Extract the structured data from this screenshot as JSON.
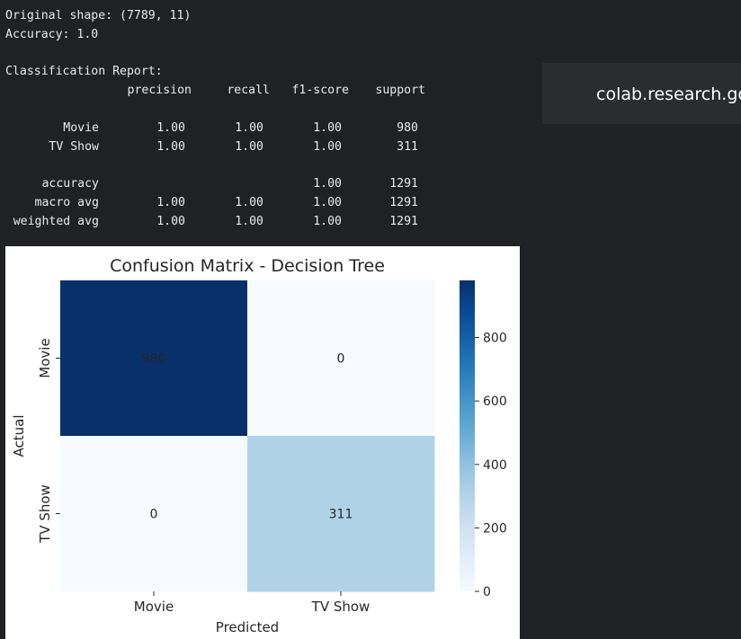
{
  "output": {
    "shape_line": "Original shape: (7789, 11)",
    "accuracy_line": "Accuracy: 1.0",
    "report_title": "Classification Report:",
    "columns": [
      "precision",
      "recall",
      "f1-score",
      "support"
    ],
    "rows": [
      {
        "label": "Movie",
        "precision": "1.00",
        "recall": "1.00",
        "f1": "1.00",
        "support": "980"
      },
      {
        "label": "TV Show",
        "precision": "1.00",
        "recall": "1.00",
        "f1": "1.00",
        "support": "311"
      },
      {
        "label": "accuracy",
        "precision": "",
        "recall": "",
        "f1": "1.00",
        "support": "1291"
      },
      {
        "label": "macro avg",
        "precision": "1.00",
        "recall": "1.00",
        "f1": "1.00",
        "support": "1291"
      },
      {
        "label": "weighted avg",
        "precision": "1.00",
        "recall": "1.00",
        "f1": "1.00",
        "support": "1291"
      }
    ]
  },
  "toast": {
    "text": "colab.research.google.com"
  },
  "chart_data": {
    "type": "heatmap",
    "title": "Confusion Matrix - Decision Tree",
    "xlabel": "Predicted",
    "ylabel": "Actual",
    "x_categories": [
      "Movie",
      "TV Show"
    ],
    "y_categories": [
      "Movie",
      "TV Show"
    ],
    "values": [
      [
        980,
        0
      ],
      [
        0,
        311
      ]
    ],
    "colormap": "Blues",
    "colorbar": {
      "min": 0,
      "max": 980,
      "ticks": [
        0,
        200,
        400,
        600,
        800
      ],
      "tick_labels": [
        "0",
        "200",
        "400",
        "600",
        "800"
      ]
    },
    "colors": {
      "low": "#f7fbff",
      "high": "#08306b"
    }
  }
}
